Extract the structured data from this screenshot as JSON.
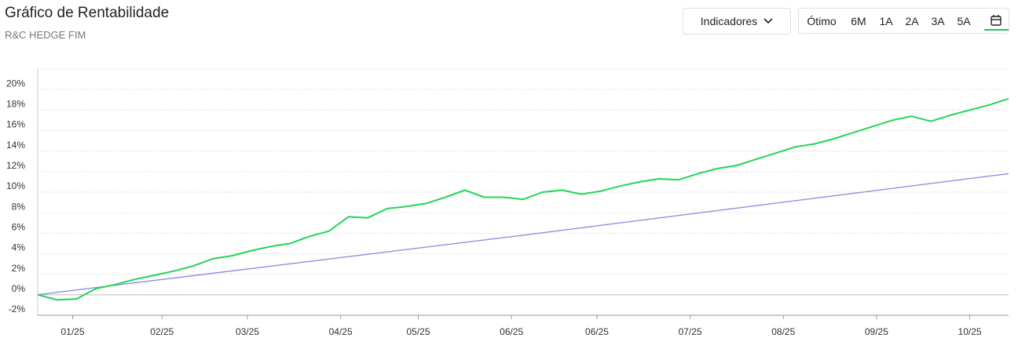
{
  "header": {
    "title": "Gráfico de Rentabilidade",
    "subtitle": "R&C HEDGE FIM"
  },
  "controls": {
    "indicators": "Indicadores",
    "periods": [
      "Ótimo",
      "6M",
      "1A",
      "2A",
      "3A",
      "5A"
    ]
  },
  "chart_data": {
    "type": "line",
    "xlim": [
      0,
      250
    ],
    "xticks": [
      {
        "value": 9,
        "label": "01/25"
      },
      {
        "value": 32,
        "label": "02/25"
      },
      {
        "value": 54,
        "label": "03/25"
      },
      {
        "value": 78,
        "label": "04/25"
      },
      {
        "value": 98,
        "label": "05/25"
      },
      {
        "value": 122,
        "label": "06/25"
      },
      {
        "value": 144,
        "label": "06/25"
      },
      {
        "value": 168,
        "label": "07/25"
      },
      {
        "value": 192,
        "label": "08/25"
      },
      {
        "value": 216,
        "label": "09/25"
      },
      {
        "value": 240,
        "label": "10/25"
      }
    ],
    "ylim": [
      -2,
      22
    ],
    "yticks": [
      {
        "value": -2,
        "label": "-2%"
      },
      {
        "value": 0,
        "label": "0%"
      },
      {
        "value": 2,
        "label": "2%"
      },
      {
        "value": 4,
        "label": "4%"
      },
      {
        "value": 6,
        "label": "6%"
      },
      {
        "value": 8,
        "label": "8%"
      },
      {
        "value": 10,
        "label": "10%"
      },
      {
        "value": 12,
        "label": "12%"
      },
      {
        "value": 14,
        "label": "14%"
      },
      {
        "value": 16,
        "label": "16%"
      },
      {
        "value": 18,
        "label": "18%"
      },
      {
        "value": 20,
        "label": "20%"
      }
    ],
    "grid": true,
    "series": [
      {
        "color": "#22d45a",
        "x": [
          0,
          5,
          10,
          15,
          20,
          25,
          30,
          35,
          40,
          45,
          50,
          55,
          60,
          65,
          70,
          75,
          80,
          85,
          90,
          95,
          100,
          105,
          110,
          115,
          120,
          125,
          130,
          135,
          140,
          145,
          150,
          155,
          160,
          165,
          170,
          175,
          180,
          185,
          190,
          195,
          200,
          205,
          210,
          215,
          220,
          225,
          230,
          235,
          240,
          245,
          250
        ],
        "values": [
          0,
          -0.5,
          -0.4,
          0.6,
          1.0,
          1.5,
          1.9,
          2.3,
          2.8,
          3.5,
          3.8,
          4.3,
          4.7,
          5.0,
          5.7,
          6.2,
          7.6,
          7.5,
          8.4,
          8.6,
          8.9,
          9.5,
          10.2,
          9.5,
          9.5,
          9.3,
          10.0,
          10.2,
          9.8,
          10.1,
          10.6,
          11.0,
          11.3,
          11.2,
          11.8,
          12.3,
          12.6,
          13.2,
          13.8,
          14.4,
          14.7,
          15.2,
          15.8,
          16.4,
          17.0,
          17.4,
          16.9,
          17.5,
          18.0,
          18.5,
          19.1
        ]
      },
      {
        "color": "#8f8fe0",
        "x": [
          0,
          125,
          250
        ],
        "values": [
          0,
          5.8,
          11.8
        ]
      }
    ]
  }
}
